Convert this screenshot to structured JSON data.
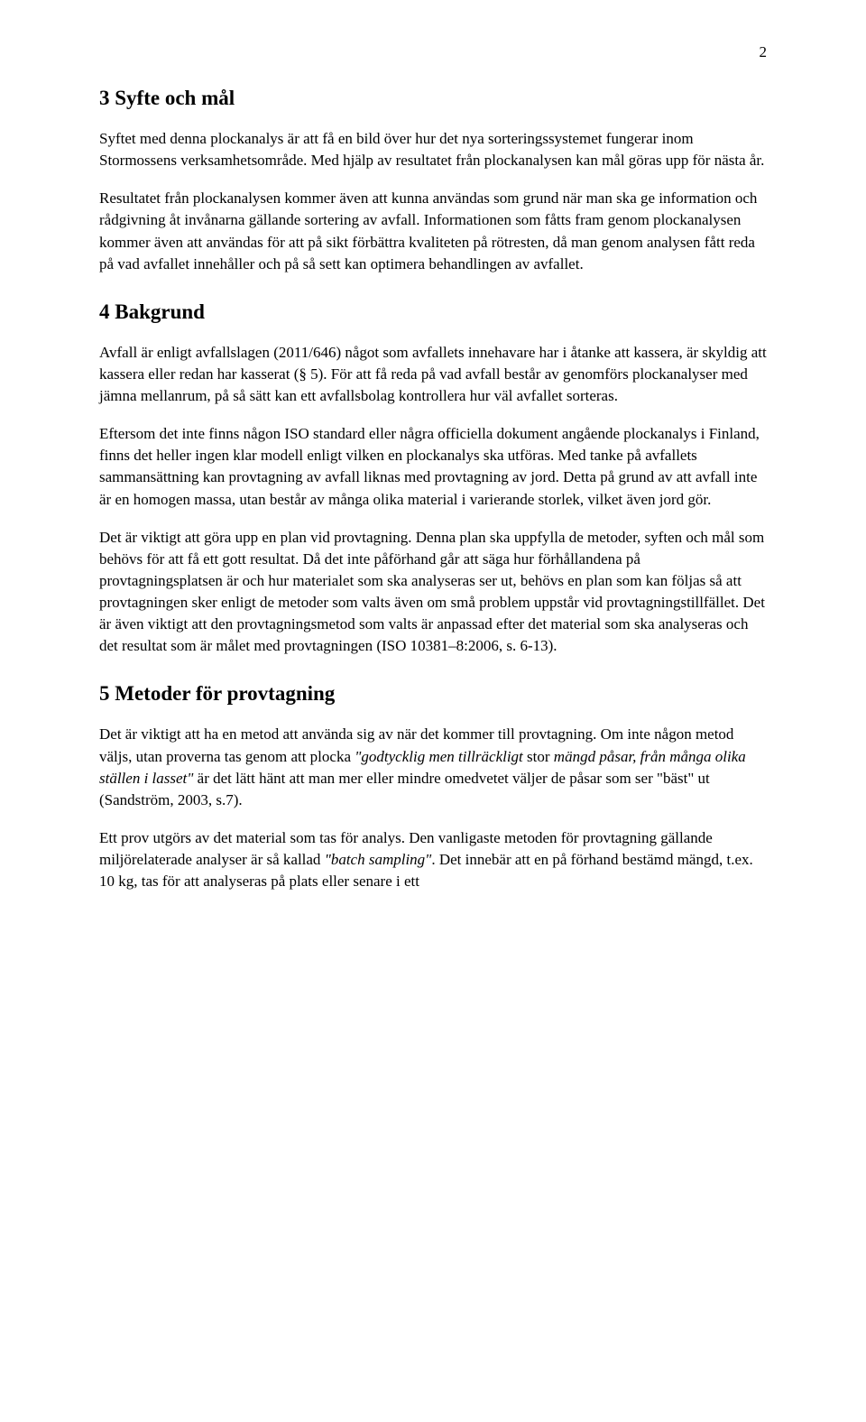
{
  "pageNumber": "2",
  "sections": {
    "s3": {
      "heading": "3   Syfte och mål",
      "p1": "Syftet med denna plockanalys är att få en bild över hur det nya sorteringssystemet fungerar inom Stormossens verksamhetsområde. Med hjälp av resultatet från plockanalysen kan mål göras upp för nästa år.",
      "p2": "Resultatet från plockanalysen kommer även att kunna användas som grund när man ska ge information och rådgivning åt invånarna gällande sortering av avfall. Informationen som fåtts fram genom plockanalysen kommer även att användas för att på sikt förbättra kvaliteten på rötresten, då man genom analysen fått reda på vad avfallet innehåller och på så sett kan optimera behandlingen av avfallet."
    },
    "s4": {
      "heading": "4   Bakgrund",
      "p1": "Avfall är enligt avfallslagen (2011/646) något som avfallets innehavare har i åtanke att kassera, är skyldig att kassera eller redan har kasserat (§ 5). För att få reda på vad avfall består av genomförs plockanalyser med jämna mellanrum, på så sätt kan ett avfallsbolag kontrollera hur väl avfallet sorteras.",
      "p2": "Eftersom det inte finns någon ISO standard eller några officiella dokument angående plockanalys i Finland, finns det heller ingen klar modell enligt vilken en plockanalys ska utföras. Med tanke på avfallets sammansättning kan provtagning av avfall liknas med provtagning av jord. Detta på grund av att avfall inte är en homogen massa, utan består av många olika material i varierande storlek, vilket även jord gör.",
      "p3": "Det är viktigt att göra upp en plan vid provtagning. Denna plan ska uppfylla de metoder, syften och mål som behövs för att få ett gott resultat. Då det inte påförhand går att säga hur förhållandena på provtagningsplatsen är och hur materialet som ska analyseras ser ut, behövs en plan som kan följas så att provtagningen sker enligt de metoder som valts även om små problem uppstår vid provtagningstillfället. Det är även viktigt att den provtagningsmetod som valts är anpassad efter det material som ska analyseras och det resultat som är målet med provtagningen (ISO 10381–8:2006, s. 6-13)."
    },
    "s5": {
      "heading": "5   Metoder för provtagning",
      "p1a": "Det är viktigt att ha en metod att använda sig av när det kommer till provtagning. Om inte någon metod väljs, utan proverna tas genom att plocka ",
      "p1b_italic": "\"godtycklig men tillräckligt",
      "p1c": " stor ",
      "p1d_italic": "mängd påsar, från många olika ställen i lasset\"",
      "p1e": " är det lätt hänt att man mer eller mindre omedvetet väljer de påsar som ser \"bäst\" ut (Sandström, 2003, s.7).",
      "p2a": "Ett prov utgörs av det material som tas för analys. Den vanligaste metoden för provtagning gällande miljörelaterade analyser är så kallad ",
      "p2b_italic": "\"batch sampling\"",
      "p2c": ". Det innebär att en på förhand bestämd mängd, t.ex. 10 kg, tas för att analyseras på plats eller senare i ett"
    }
  }
}
